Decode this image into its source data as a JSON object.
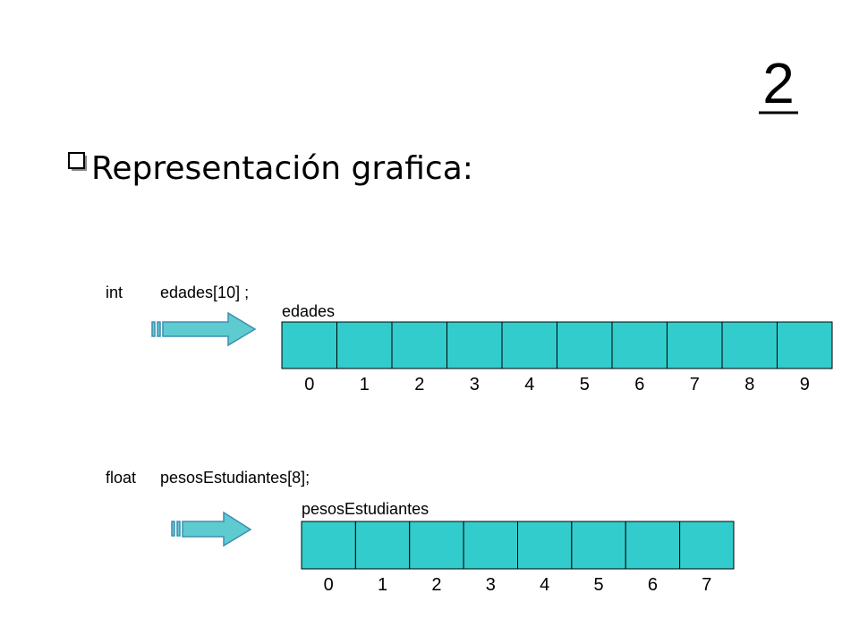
{
  "slide_number": "2",
  "heading": "Representación grafica:",
  "arrays": [
    {
      "type_keyword": "int",
      "declaration": "edades[10] ;",
      "label": "edades",
      "indices": [
        0,
        1,
        2,
        3,
        4,
        5,
        6,
        7,
        8,
        9
      ]
    },
    {
      "type_keyword": "float",
      "declaration": "pesosEstudiantes[8];",
      "label": "pesosEstudiantes",
      "indices": [
        0,
        1,
        2,
        3,
        4,
        5,
        6,
        7
      ]
    }
  ]
}
